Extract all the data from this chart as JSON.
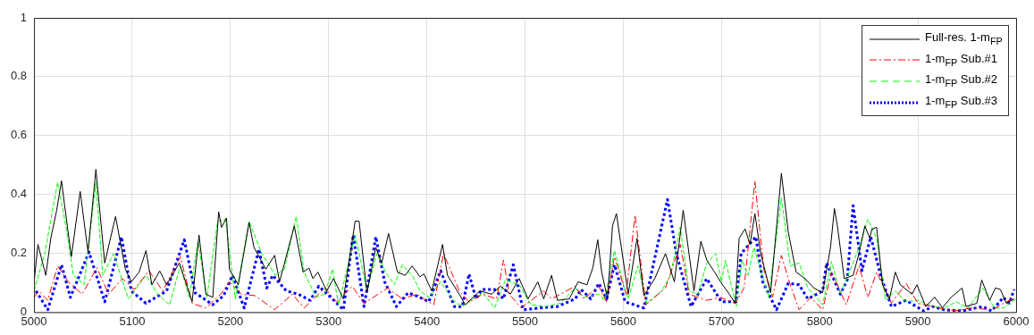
{
  "chart_data": {
    "type": "line",
    "xlim": [
      5000,
      6000
    ],
    "xticks": [
      5000,
      5100,
      5200,
      5300,
      5400,
      5500,
      5600,
      5700,
      5800,
      5900,
      6000
    ],
    "ylim": [
      0,
      1
    ],
    "yticks": [
      0,
      0.2,
      0.4,
      0.6,
      0.8,
      1
    ],
    "grid": true,
    "legend": "top right",
    "marker": "none",
    "series": [
      {
        "name": "Full-res. 1-m$_{FP}$",
        "color": "#000000",
        "line_style": "solid",
        "x": [
          5000,
          5004,
          5012,
          5017,
          5023,
          5028,
          5031,
          5038,
          5047,
          5055,
          5063,
          5072,
          5083,
          5093,
          5099,
          5107,
          5114,
          5120,
          5128,
          5135,
          5148,
          5161,
          5168,
          5175,
          5182,
          5188,
          5191,
          5196,
          5199,
          5208,
          5219,
          5224,
          5236,
          5245,
          5250,
          5265,
          5274,
          5280,
          5284,
          5289,
          5298,
          5305,
          5315,
          5327,
          5331,
          5339,
          5348,
          5354,
          5361,
          5370,
          5378,
          5385,
          5393,
          5397,
          5405,
          5416,
          5421,
          5433,
          5439,
          5454,
          5466,
          5475,
          5485,
          5494,
          5503,
          5513,
          5519,
          5527,
          5533,
          5545,
          5554,
          5563,
          5569,
          5574,
          5578,
          5584,
          5589,
          5593,
          5598,
          5605,
          5614,
          5621,
          5632,
          5643,
          5652,
          5661,
          5672,
          5679,
          5685,
          5693,
          5699,
          5708,
          5714,
          5718,
          5724,
          5729,
          5734,
          5740,
          5750,
          5761,
          5768,
          5776,
          5785,
          5794,
          5803,
          5811,
          5815,
          5818,
          5825,
          5834,
          5840,
          5846,
          5851,
          5853,
          5858,
          5864,
          5871,
          5877,
          5882,
          5894,
          5899,
          5908,
          5917,
          5925,
          5934,
          5945,
          5949,
          5960,
          5965,
          5973,
          5979,
          5984,
          5990,
          5998
        ],
        "values": [
          0.1,
          0.23,
          0.125,
          0.25,
          0.345,
          0.446,
          0.367,
          0.188,
          0.41,
          0.204,
          0.485,
          0.167,
          0.325,
          0.146,
          0.103,
          0.136,
          0.209,
          0.093,
          0.14,
          0.093,
          0.167,
          0.035,
          0.262,
          0.061,
          0.05,
          0.341,
          0.288,
          0.32,
          0.145,
          0.093,
          0.304,
          0.22,
          0.146,
          0.193,
          0.103,
          0.293,
          0.136,
          0.15,
          0.114,
          0.136,
          0.072,
          0.114,
          0.045,
          0.309,
          0.309,
          0.066,
          0.22,
          0.167,
          0.267,
          0.136,
          0.125,
          0.157,
          0.12,
          0.13,
          0.072,
          0.23,
          0.125,
          0.061,
          0.025,
          0.072,
          0.061,
          0.088,
          0.061,
          0.114,
          0.045,
          0.103,
          0.045,
          0.125,
          0.04,
          0.045,
          0.103,
          0.093,
          0.151,
          0.246,
          0.136,
          0.045,
          0.293,
          0.335,
          0.22,
          0.061,
          0.251,
          0.056,
          0.114,
          0.199,
          0.103,
          0.346,
          0.072,
          0.241,
          0.177,
          0.136,
          0.103,
          0.061,
          0.03,
          0.251,
          0.283,
          0.23,
          0.335,
          0.199,
          0.066,
          0.472,
          0.272,
          0.136,
          0.114,
          0.082,
          0.066,
          0.22,
          0.352,
          0.293,
          0.114,
          0.125,
          0.199,
          0.293,
          0.251,
          0.282,
          0.288,
          0.093,
          0.045,
          0.136,
          0.093,
          0.061,
          0.093,
          0.019,
          0.051,
          0.015,
          0.051,
          0.082,
          0.019,
          0.03,
          0.109,
          0.04,
          0.082,
          0.077,
          0.03,
          0.045
        ]
      },
      {
        "name": "1-m$_{FP}$ Sub.#1",
        "color": "#ff0000",
        "line_style": "dashdot",
        "x": [
          5000,
          5005,
          5014,
          5024,
          5035,
          5049,
          5064,
          5076,
          5090,
          5102,
          5117,
          5131,
          5149,
          5161,
          5175,
          5190,
          5199,
          5211,
          5225,
          5245,
          5263,
          5275,
          5296,
          5308,
          5324,
          5336,
          5360,
          5375,
          5390,
          5399,
          5407,
          5417,
          5433,
          5443,
          5457,
          5471,
          5478,
          5484,
          5496,
          5519,
          5527,
          5551,
          5560,
          5575,
          5583,
          5591,
          5603,
          5612,
          5623,
          5643,
          5658,
          5667,
          5685,
          5699,
          5714,
          5723,
          5734,
          5743,
          5752,
          5761,
          5770,
          5779,
          5791,
          5803,
          5812,
          5827,
          5840,
          5849,
          5858,
          5873,
          5888,
          5900,
          5921,
          5939,
          5954,
          5975,
          5996
        ],
        "values": [
          0.05,
          0.072,
          0.04,
          0.157,
          0.103,
          0.061,
          0.151,
          0.061,
          0.114,
          0.077,
          0.141,
          0.072,
          0.188,
          0.03,
          0.014,
          0.061,
          0.103,
          0.061,
          0.056,
          0.008,
          0.061,
          0.014,
          0.082,
          0.035,
          0.088,
          0.03,
          0.082,
          0.045,
          0.061,
          0.04,
          0.025,
          0.199,
          0.072,
          0.035,
          0.061,
          0.045,
          0.177,
          0.061,
          0.014,
          0.072,
          0.045,
          0.088,
          0.045,
          0.088,
          0.035,
          0.188,
          0.061,
          0.33,
          0.025,
          0.082,
          0.23,
          0.061,
          0.04,
          0.05,
          0.03,
          0.082,
          0.446,
          0.146,
          0.051,
          0.193,
          0.093,
          0.008,
          0.05,
          0.008,
          0.136,
          0.025,
          0.157,
          0.05,
          0.136,
          0.03,
          0.098,
          0.03,
          0.014,
          0.005,
          0.014,
          0.008,
          0.045
        ]
      },
      {
        "name": "1-m$_{FP}$ Sub.#2",
        "color": "#00ff00",
        "line_style": "dashed",
        "x": [
          5000,
          5011,
          5024,
          5033,
          5040,
          5051,
          5063,
          5070,
          5081,
          5096,
          5114,
          5126,
          5138,
          5149,
          5158,
          5167,
          5176,
          5187,
          5195,
          5205,
          5219,
          5232,
          5246,
          5255,
          5267,
          5275,
          5287,
          5296,
          5304,
          5310,
          5327,
          5339,
          5349,
          5358,
          5367,
          5375,
          5386,
          5393,
          5402,
          5414,
          5427,
          5436,
          5448,
          5457,
          5469,
          5480,
          5494,
          5506,
          5521,
          5536,
          5551,
          5560,
          5575,
          5581,
          5591,
          5602,
          5605,
          5615,
          5624,
          5639,
          5648,
          5658,
          5667,
          5676,
          5685,
          5694,
          5700,
          5704,
          5715,
          5721,
          5727,
          5733,
          5748,
          5761,
          5770,
          5779,
          5788,
          5803,
          5812,
          5821,
          5834,
          5840,
          5849,
          5858,
          5867,
          5877,
          5888,
          5900,
          5915,
          5927,
          5939,
          5951,
          5966,
          5978,
          5987,
          6000
        ],
        "values": [
          0.072,
          0.2,
          0.441,
          0.283,
          0.125,
          0.093,
          0.441,
          0.125,
          0.199,
          0.045,
          0.125,
          0.061,
          0.025,
          0.157,
          0.05,
          0.241,
          0.05,
          0.309,
          0.315,
          0.045,
          0.309,
          0.199,
          0.125,
          0.146,
          0.325,
          0.136,
          0.051,
          0.061,
          0.146,
          0.025,
          0.262,
          0.072,
          0.199,
          0.136,
          0.093,
          0.161,
          0.12,
          0.072,
          0.05,
          0.103,
          0.04,
          0.019,
          0.045,
          0.066,
          0.014,
          0.109,
          0.093,
          0.025,
          0.019,
          0.03,
          0.082,
          0.05,
          0.061,
          0.04,
          0.209,
          0.072,
          0.045,
          0.157,
          0.03,
          0.072,
          0.125,
          0.288,
          0.072,
          0.061,
          0.167,
          0.199,
          0.103,
          0.177,
          0.019,
          0.177,
          0.125,
          0.22,
          0.051,
          0.388,
          0.157,
          0.167,
          0.082,
          0.025,
          0.172,
          0.061,
          0.167,
          0.22,
          0.315,
          0.251,
          0.04,
          0.072,
          0.035,
          0.04,
          0.019,
          0.014,
          0.035,
          0.014,
          0.082,
          0.014,
          0.014,
          0.045
        ]
      },
      {
        "name": "1-m$_{FP}$ Sub.#3",
        "color": "#0000ff",
        "line_style": "dotted",
        "x": [
          5002,
          5014,
          5028,
          5037,
          5056,
          5072,
          5089,
          5099,
          5114,
          5135,
          5153,
          5164,
          5182,
          5193,
          5202,
          5214,
          5229,
          5237,
          5243,
          5257,
          5269,
          5281,
          5290,
          5302,
          5315,
          5325,
          5336,
          5348,
          5357,
          5369,
          5381,
          5393,
          5402,
          5414,
          5428,
          5436,
          5443,
          5450,
          5456,
          5469,
          5478,
          5488,
          5498,
          5515,
          5533,
          5551,
          5557,
          5567,
          5575,
          5583,
          5591,
          5602,
          5621,
          5645,
          5654,
          5669,
          5685,
          5700,
          5715,
          5720,
          5735,
          5742,
          5756,
          5768,
          5779,
          5788,
          5803,
          5807,
          5821,
          5828,
          5834,
          5843,
          5852,
          5862,
          5873,
          5888,
          5906,
          5915,
          5927,
          5945,
          5966,
          5975,
          5987,
          5993,
          5998
        ],
        "values": [
          0.072,
          0.008,
          0.161,
          0.05,
          0.204,
          0.035,
          0.256,
          0.072,
          0.03,
          0.072,
          0.246,
          0.066,
          0.025,
          0.056,
          0.125,
          0.014,
          0.214,
          0.082,
          0.125,
          0.072,
          0.061,
          0.04,
          0.088,
          0.051,
          0.008,
          0.262,
          0.019,
          0.256,
          0.103,
          0.019,
          0.066,
          0.05,
          0.035,
          0.141,
          0.019,
          0.019,
          0.13,
          0.045,
          0.077,
          0.077,
          0.045,
          0.161,
          0.008,
          0.014,
          0.019,
          0.045,
          0.077,
          0.045,
          0.098,
          0.045,
          0.161,
          0.035,
          0.014,
          0.383,
          0.199,
          0.019,
          0.114,
          0.035,
          0.035,
          0.199,
          0.256,
          0.103,
          0.008,
          0.098,
          0.093,
          0.045,
          0.072,
          0.167,
          0.061,
          0.109,
          0.362,
          0.141,
          0.256,
          0.125,
          0.019,
          0.04,
          0.004,
          0.019,
          0.008,
          0.004,
          0.019,
          0.004,
          0.05,
          0.03,
          0.077
        ]
      }
    ]
  }
}
